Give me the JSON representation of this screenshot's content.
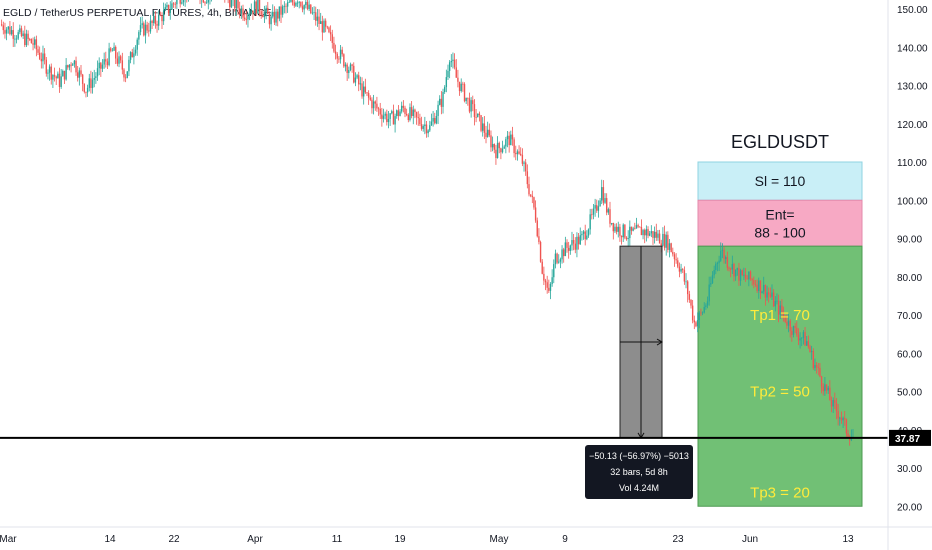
{
  "header": {
    "title": "EGLD / TetherUS PERPETUAL FUTURES, 4h, BINANCE"
  },
  "chart_data": {
    "type": "candlestick",
    "y_ticks": [
      150,
      140,
      130,
      120,
      110,
      100,
      90,
      80,
      70,
      60,
      50,
      40,
      30,
      20
    ],
    "y_tick_labels": [
      "150.00",
      "140.00",
      "130.00",
      "120.00",
      "110.00",
      "100.00",
      "90.00",
      "80.00",
      "70.00",
      "60.00",
      "50.00",
      "40.00",
      "30.00",
      "20.00"
    ],
    "x_ticks": [
      "Mar",
      "14",
      "22",
      "Apr",
      "11",
      "19",
      "May",
      "9",
      "23",
      "Jun",
      "13"
    ],
    "ylim": [
      17,
      152
    ],
    "current_price": 37.87,
    "current_price_label": "37.87",
    "price_path": [
      [
        0,
        146
      ],
      [
        2,
        144
      ],
      [
        5,
        141
      ],
      [
        7,
        135
      ],
      [
        9,
        131
      ],
      [
        11,
        137
      ],
      [
        13,
        129
      ],
      [
        15,
        134
      ],
      [
        17,
        139
      ],
      [
        19,
        133
      ],
      [
        21,
        144
      ],
      [
        23,
        146
      ],
      [
        25,
        149
      ],
      [
        27,
        153
      ],
      [
        29,
        156
      ],
      [
        31,
        153
      ],
      [
        33,
        155
      ],
      [
        35,
        152
      ],
      [
        37,
        149
      ],
      [
        39,
        151
      ],
      [
        41,
        147
      ],
      [
        43,
        150
      ],
      [
        45,
        153
      ],
      [
        47,
        149
      ],
      [
        49,
        145
      ],
      [
        51,
        139
      ],
      [
        53,
        134
      ],
      [
        55,
        128
      ],
      [
        57,
        124
      ],
      [
        59,
        121
      ],
      [
        61,
        124
      ],
      [
        63,
        121
      ],
      [
        65,
        119
      ],
      [
        67,
        127
      ],
      [
        68,
        138
      ],
      [
        69,
        132
      ],
      [
        71,
        125
      ],
      [
        73,
        119
      ],
      [
        75,
        113
      ],
      [
        77,
        116
      ],
      [
        79,
        110
      ],
      [
        81,
        96
      ],
      [
        82,
        82
      ],
      [
        83,
        75
      ],
      [
        84,
        85
      ],
      [
        86,
        88
      ],
      [
        88,
        90
      ],
      [
        90,
        97
      ],
      [
        91,
        103
      ],
      [
        92,
        96
      ],
      [
        93,
        93
      ],
      [
        95,
        91
      ],
      [
        97,
        92
      ],
      [
        99,
        91
      ],
      [
        101,
        89
      ],
      [
        103,
        82
      ],
      [
        104,
        76
      ],
      [
        105,
        68
      ],
      [
        106,
        70
      ],
      [
        107,
        74
      ],
      [
        108,
        82
      ],
      [
        109,
        87
      ],
      [
        110,
        84
      ],
      [
        112,
        80
      ],
      [
        114,
        79
      ],
      [
        116,
        76
      ],
      [
        118,
        71
      ],
      [
        120,
        66
      ],
      [
        122,
        63
      ],
      [
        123,
        58
      ],
      [
        124,
        54
      ],
      [
        125,
        50
      ],
      [
        126,
        46
      ],
      [
        127,
        44
      ],
      [
        128,
        40
      ],
      [
        129,
        38
      ]
    ],
    "series": [
      {
        "name": "EGLDUSDT",
        "type": "candlestick"
      }
    ]
  },
  "annotations": {
    "symbol": "EGLDUSDT",
    "sl": {
      "label": "Sl = 110",
      "top": 110,
      "bottom": 100,
      "color": "#c9eff7"
    },
    "entry": {
      "label_line1": "Ent=",
      "label_line2": "88 - 100",
      "top": 100,
      "bottom": 88,
      "color": "#f7a9c4"
    },
    "targets": {
      "top": 88,
      "bottom": 20,
      "color": "#66bb6a",
      "items": [
        {
          "label": "Tp1 = 70",
          "value": 70
        },
        {
          "label": "Tp2 = 50",
          "value": 50
        },
        {
          "label": "Tp3 = 20",
          "value": 20
        }
      ]
    },
    "horizontal_line": 37.87,
    "measure": {
      "line1": "−50.13 (−56.97%) −5013",
      "line2": "32 bars, 5d 8h",
      "line3": "Vol 4.24M",
      "top": 88,
      "bottom": 37.87
    }
  },
  "colors": {
    "up": "#26a69a",
    "down": "#ef5350",
    "axis_text": "#131722"
  }
}
